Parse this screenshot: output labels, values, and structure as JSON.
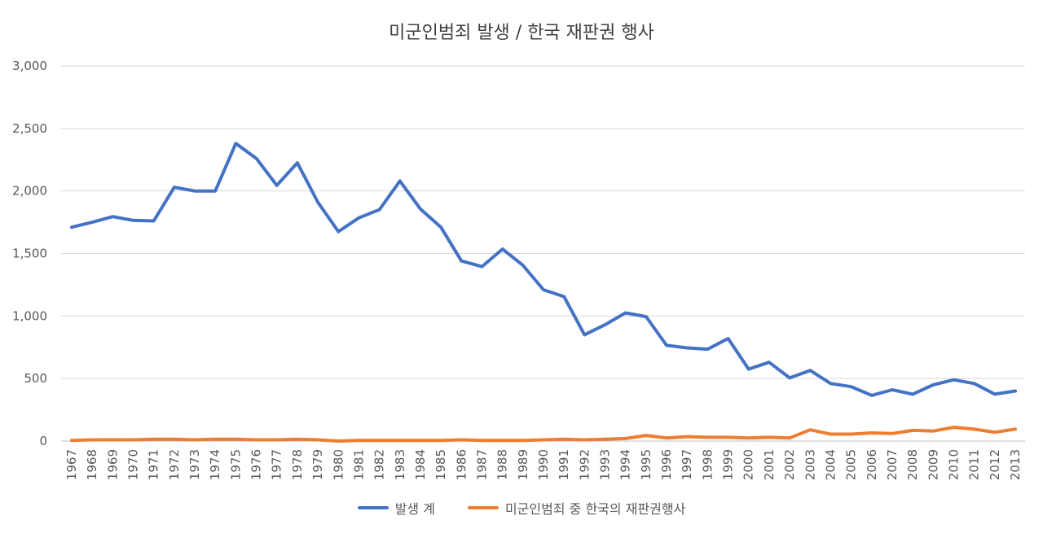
{
  "chart_data": {
    "type": "line",
    "title": "미군인범죄 발생 / 한국 재판권 행사",
    "xlabel": "",
    "ylabel": "",
    "ylim": [
      0,
      3000
    ],
    "yticks": [
      "0",
      "500",
      "1,000",
      "1,500",
      "2,000",
      "2,500",
      "3,000"
    ],
    "grid": true,
    "legend_position": "bottom",
    "categories": [
      "1967",
      "1968",
      "1969",
      "1970",
      "1971",
      "1972",
      "1973",
      "1974",
      "1975",
      "1976",
      "1977",
      "1978",
      "1979",
      "1980",
      "1981",
      "1982",
      "1983",
      "1984",
      "1985",
      "1986",
      "1987",
      "1988",
      "1989",
      "1990",
      "1991",
      "1992",
      "1993",
      "1994",
      "1995",
      "1996",
      "1997",
      "1998",
      "1999",
      "2000",
      "2001",
      "2002",
      "2003",
      "2004",
      "2005",
      "2006",
      "2007",
      "2008",
      "2009",
      "2010",
      "2011",
      "2012",
      "2013"
    ],
    "series": [
      {
        "name": "발생 계",
        "color": "#4472C4",
        "values": [
          1710,
          1750,
          1795,
          1765,
          1760,
          2030,
          2000,
          2000,
          2380,
          2260,
          2045,
          2225,
          1910,
          1675,
          1785,
          1850,
          2080,
          1855,
          1710,
          1440,
          1395,
          1535,
          1405,
          1210,
          1155,
          850,
          930,
          1025,
          995,
          765,
          745,
          735,
          820,
          575,
          630,
          505,
          565,
          460,
          435,
          365,
          410,
          375,
          450,
          490,
          460,
          375,
          400
        ]
      },
      {
        "name": "미군인범죄 중 한국의 재판권행사",
        "color": "#ED7D31",
        "values": [
          5,
          10,
          10,
          10,
          15,
          15,
          10,
          15,
          15,
          10,
          10,
          15,
          10,
          0,
          5,
          5,
          5,
          5,
          5,
          10,
          5,
          5,
          5,
          10,
          15,
          10,
          15,
          20,
          45,
          25,
          35,
          30,
          30,
          25,
          30,
          25,
          90,
          55,
          55,
          65,
          60,
          85,
          80,
          110,
          95,
          70,
          95
        ]
      }
    ]
  }
}
